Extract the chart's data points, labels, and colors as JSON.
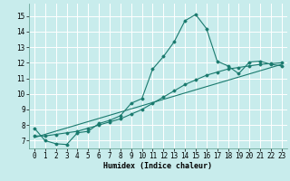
{
  "xlabel": "Humidex (Indice chaleur)",
  "bg_color": "#c8ecec",
  "grid_color": "#ffffff",
  "line_color": "#1a7a6e",
  "xlim": [
    -0.5,
    23.5
  ],
  "ylim": [
    6.5,
    15.8
  ],
  "xticks": [
    0,
    1,
    2,
    3,
    4,
    5,
    6,
    7,
    8,
    9,
    10,
    11,
    12,
    13,
    14,
    15,
    16,
    17,
    18,
    19,
    20,
    21,
    22,
    23
  ],
  "yticks": [
    7,
    8,
    9,
    10,
    11,
    12,
    13,
    14,
    15
  ],
  "curve1_x": [
    0,
    1,
    2,
    3,
    4,
    5,
    6,
    7,
    8,
    9,
    10,
    11,
    12,
    13,
    14,
    15,
    16,
    17,
    18,
    19,
    20,
    21,
    22,
    23
  ],
  "curve1_y": [
    7.8,
    7.0,
    6.8,
    6.75,
    7.5,
    7.6,
    8.1,
    8.3,
    8.6,
    9.4,
    9.7,
    11.6,
    12.4,
    13.35,
    14.7,
    15.1,
    14.2,
    12.1,
    11.8,
    11.3,
    12.05,
    12.1,
    11.9,
    11.8
  ],
  "curve2_x": [
    0,
    1,
    2,
    3,
    4,
    5,
    6,
    7,
    8,
    9,
    10,
    11,
    12,
    13,
    14,
    15,
    16,
    17,
    18,
    19,
    20,
    21,
    22,
    23
  ],
  "curve2_y": [
    7.3,
    7.3,
    7.4,
    7.5,
    7.6,
    7.8,
    8.0,
    8.2,
    8.4,
    8.7,
    9.0,
    9.4,
    9.8,
    10.2,
    10.6,
    10.9,
    11.2,
    11.4,
    11.6,
    11.7,
    11.8,
    11.9,
    11.95,
    12.0
  ],
  "curve3_x": [
    0,
    23
  ],
  "curve3_y": [
    7.2,
    11.9
  ]
}
